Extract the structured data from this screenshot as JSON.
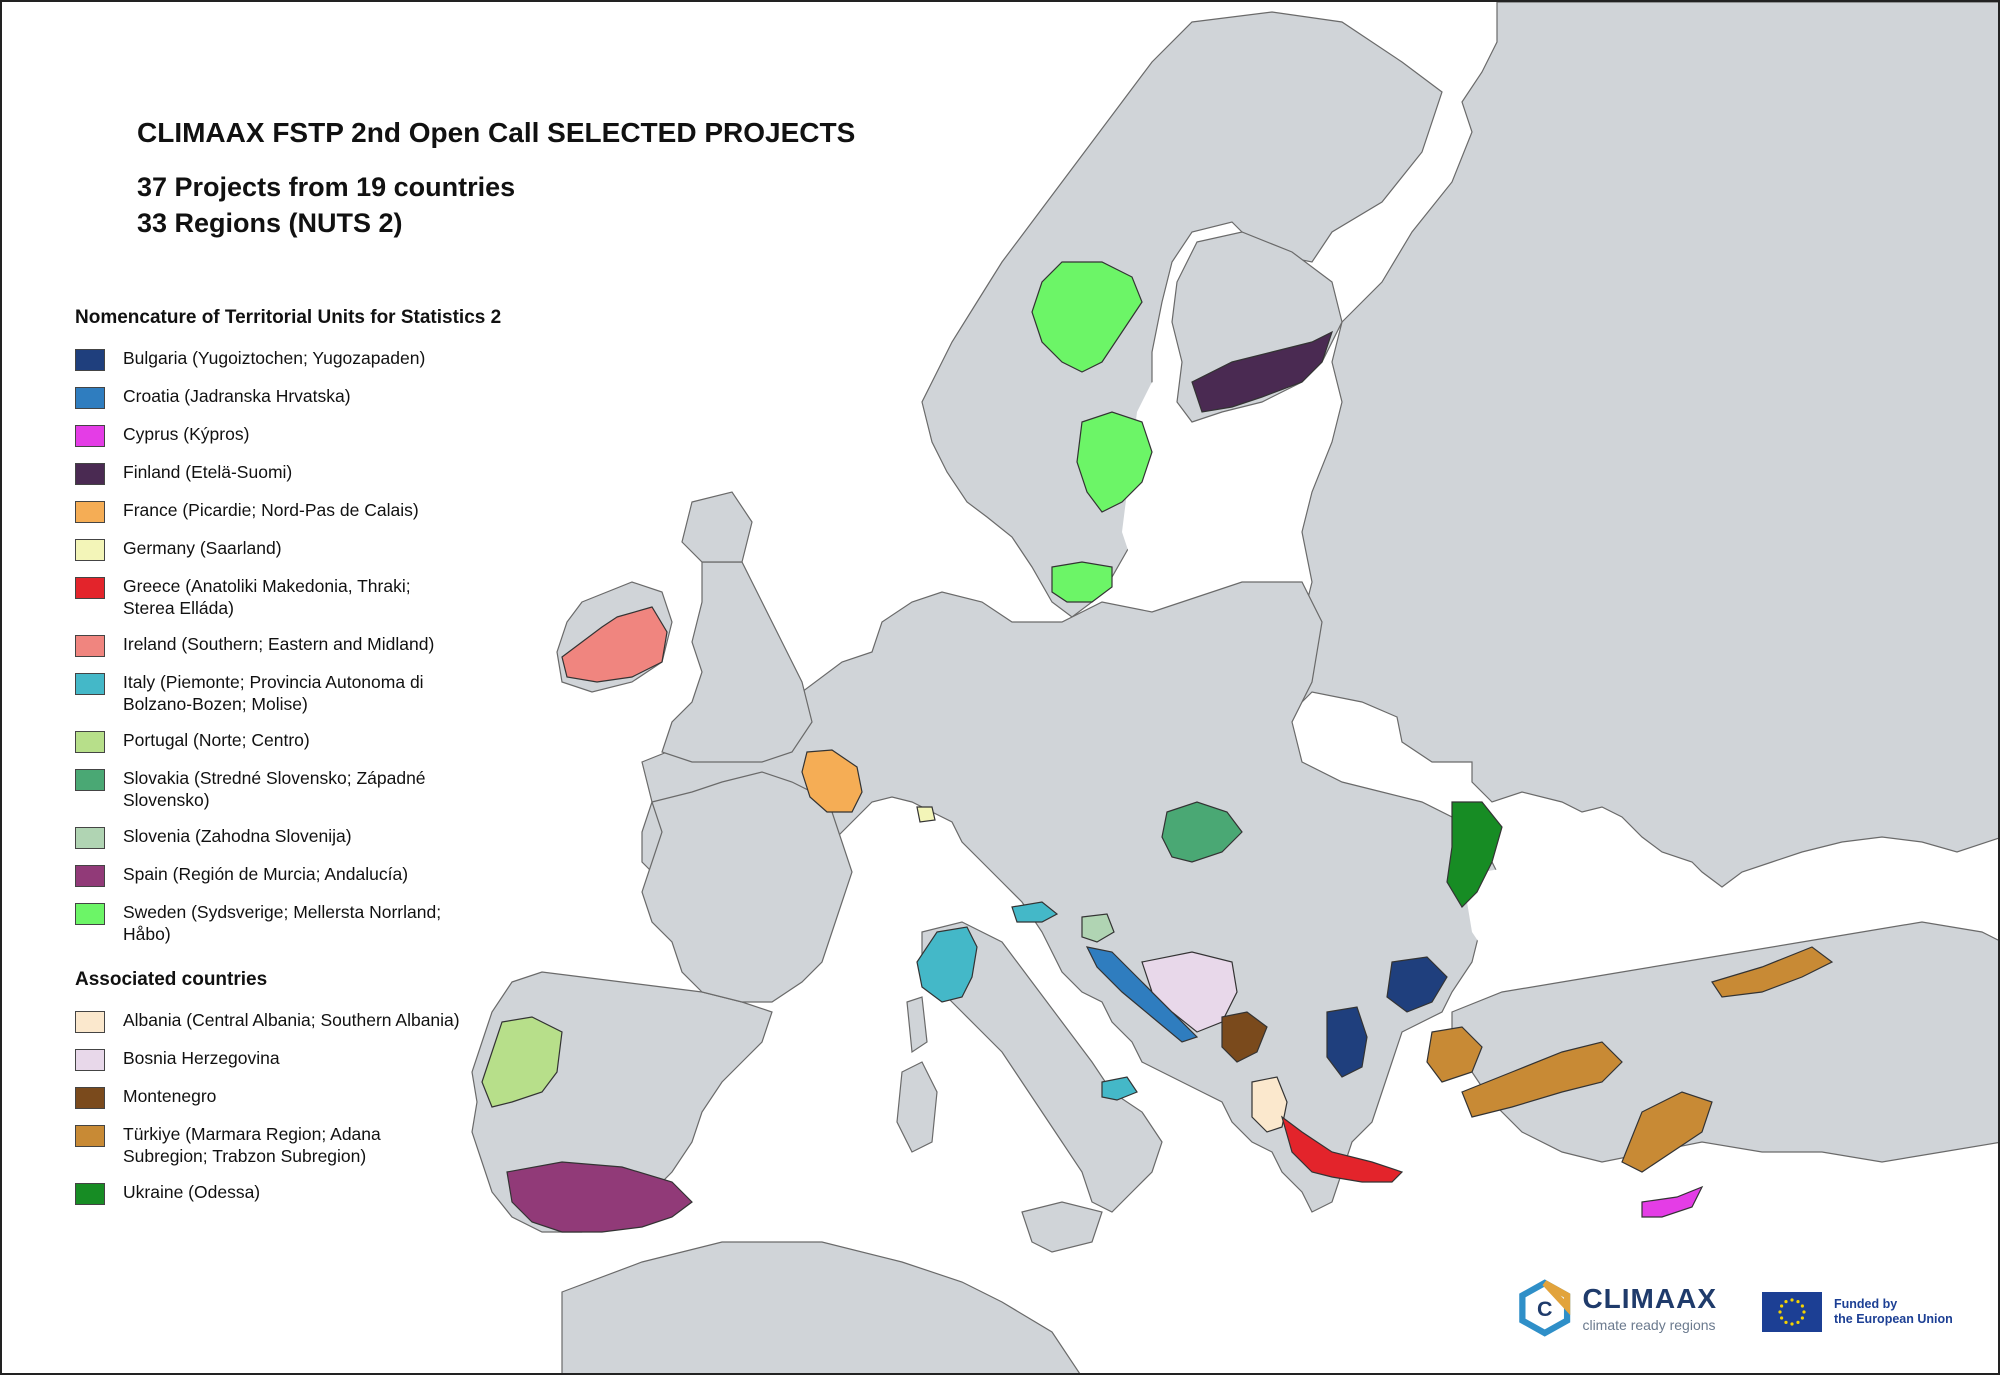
{
  "title": "CLIMAAX FSTP 2nd Open Call SELECTED PROJECTS",
  "subtitle_lines": [
    "37 Projects from 19 countries",
    "33 Regions (NUTS 2)"
  ],
  "legend": {
    "nuts_heading": "Nomencature of Territorial Units for Statistics 2",
    "nuts_items": [
      {
        "label": "Bulgaria (Yugoiztochen; Yugozapaden)",
        "color": "#1f3f7d"
      },
      {
        "label": "Croatia (Jadranska Hrvatska)",
        "color": "#2f7dbf"
      },
      {
        "label": "Cyprus (Kýpros)",
        "color": "#e43de6"
      },
      {
        "label": "Finland (Etelä-Suomi)",
        "color": "#4a2a52"
      },
      {
        "label": "France (Picardie; Nord-Pas de Calais)",
        "color": "#f5ad55"
      },
      {
        "label": "Germany (Saarland)",
        "color": "#f3f5b8"
      },
      {
        "label": "Greece (Anatoliki Makedonia, Thraki; Sterea Elláda)",
        "color": "#e3242b"
      },
      {
        "label": "Ireland (Southern; Eastern and Midland)",
        "color": "#f0857f"
      },
      {
        "label": "Italy (Piemonte; Provincia Autonoma di Bolzano-Bozen; Molise)",
        "color": "#44b8c8"
      },
      {
        "label": "Portugal (Norte; Centro)",
        "color": "#b7df8a"
      },
      {
        "label": "Slovakia (Stredné Slovensko; Západné Slovensko)",
        "color": "#4aa874"
      },
      {
        "label": "Slovenia (Zahodna Slovenija)",
        "color": "#b0d4b3"
      },
      {
        "label": "Spain (Región de Murcia; Andalucía)",
        "color": "#913a78"
      },
      {
        "label": "Sweden (Sydsverige; Mellersta Norrland; Håbo)",
        "color": "#6cf567"
      }
    ],
    "assoc_heading": "Associated countries",
    "assoc_items": [
      {
        "label": "Albania (Central Albania; Southern Albania)",
        "color": "#fbe8cd"
      },
      {
        "label": "Bosnia Herzegovina",
        "color": "#e8d8ea"
      },
      {
        "label": "Montenegro",
        "color": "#7a4a1c"
      },
      {
        "label": "Türkiye (Marmara Region; Adana Subregion; Trabzon Subregion)",
        "color": "#c88a35"
      },
      {
        "label": "Ukraine (Odessa)",
        "color": "#178c24"
      }
    ]
  },
  "logos": {
    "climaax_name": "CLIMAAX",
    "climaax_tagline": "climate ready regions",
    "eu_text_line1": "Funded by",
    "eu_text_line2": "the European Union"
  }
}
